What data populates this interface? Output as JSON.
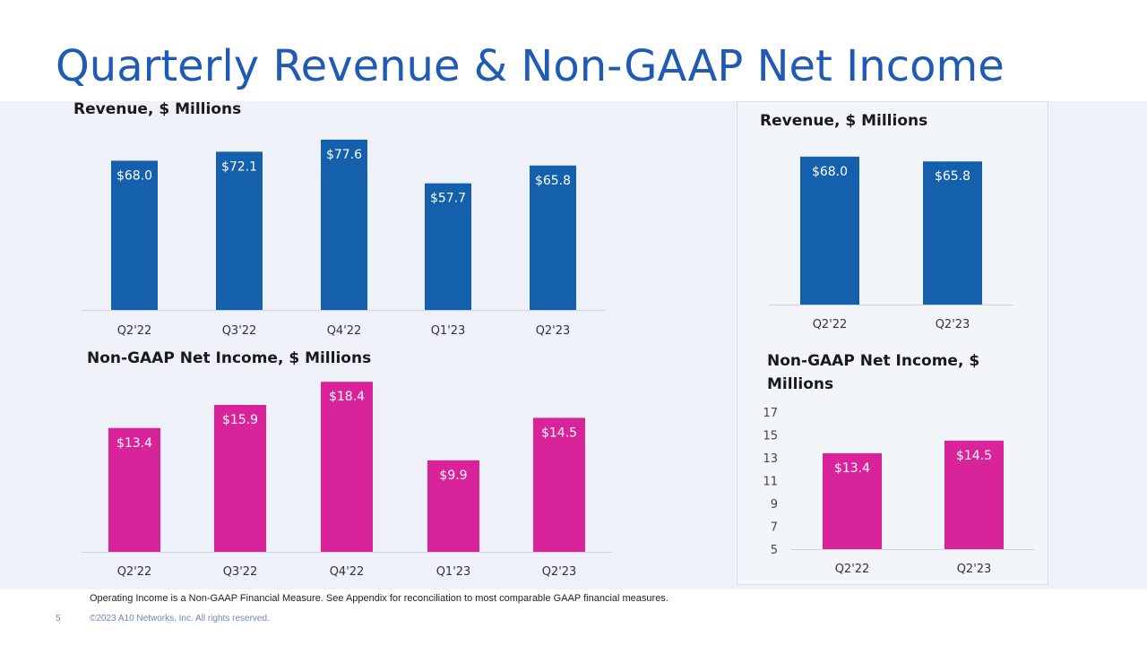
{
  "slide": {
    "title": "Quarterly Revenue & Non-GAAP Net Income",
    "footnote": "Operating Income is a Non-GAAP Financial Measure. See Appendix for reconciliation to most comparable GAAP financial measures.",
    "page_number": "5",
    "copyright": "©2023 A10 Networks, Inc. All rights reserved."
  },
  "colors": {
    "title": "#1f5bb5",
    "revenue_bar": "#1560ad",
    "income_bar": "#d9239a",
    "axis": "#cfd4db"
  },
  "chart_data": [
    {
      "id": "rev-quarterly",
      "type": "bar",
      "title": "Revenue, $ Millions",
      "categories": [
        "Q2'22",
        "Q3'22",
        "Q4'22",
        "Q1'23",
        "Q2'23"
      ],
      "values": [
        68.0,
        72.1,
        77.6,
        57.7,
        65.8
      ],
      "labels": [
        "$68.0",
        "$72.1",
        "$77.6",
        "$57.7",
        "$65.8"
      ],
      "ylim": [
        0,
        80
      ]
    },
    {
      "id": "income-quarterly",
      "type": "bar",
      "title": "Non-GAAP Net Income, $ Millions",
      "categories": [
        "Q2'22",
        "Q3'22",
        "Q4'22",
        "Q1'23",
        "Q2'23"
      ],
      "values": [
        13.4,
        15.9,
        18.4,
        9.9,
        14.5
      ],
      "labels": [
        "$13.4",
        "$15.9",
        "$18.4",
        "$9.9",
        "$14.5"
      ],
      "ylim": [
        0,
        19
      ]
    },
    {
      "id": "rev-yoy",
      "type": "bar",
      "title": "Revenue, $ Millions",
      "categories": [
        "Q2'22",
        "Q2'23"
      ],
      "values": [
        68.0,
        65.8
      ],
      "labels": [
        "$68.0",
        "$65.8"
      ],
      "ylim": [
        0,
        70
      ]
    },
    {
      "id": "income-yoy",
      "type": "bar",
      "title": "Non-GAAP Net Income, $ Millions",
      "categories": [
        "Q2'22",
        "Q2'23"
      ],
      "values": [
        13.4,
        14.5
      ],
      "labels": [
        "$13.4",
        "$14.5"
      ],
      "ylim": [
        5,
        17
      ],
      "yticks": [
        5,
        7,
        9,
        11,
        13,
        15,
        17
      ]
    }
  ]
}
